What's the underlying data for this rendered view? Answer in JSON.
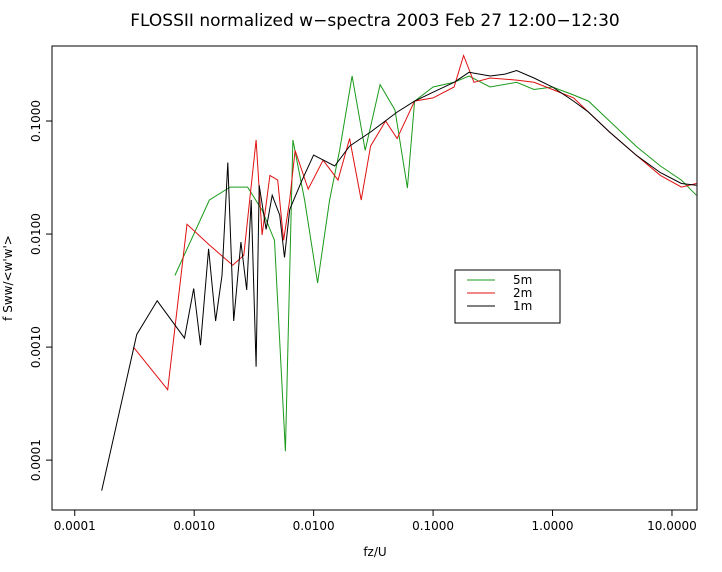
{
  "chart_data": {
    "type": "line",
    "title": "FLOSSII normalized w−spectra 2003 Feb 27 12:00−12:30",
    "x_label": "fz/U",
    "y_label": "f Sww/<w'w'>",
    "xlog": true,
    "ylog": true,
    "legend": "center-right",
    "xlim": [
      6.45e-05,
      16.2
    ],
    "ylim": [
      3.62e-05,
      0.461
    ],
    "xticks": [
      {
        "value": 0.0001,
        "label": "0.0001"
      },
      {
        "value": 0.001,
        "label": "0.0010"
      },
      {
        "value": 0.01,
        "label": "0.0100"
      },
      {
        "value": 0.1,
        "label": "0.1000"
      },
      {
        "value": 1,
        "label": "1.0000"
      },
      {
        "value": 10,
        "label": "10.0000"
      }
    ],
    "yticks": [
      {
        "value": 0.0001,
        "label": "0.0001"
      },
      {
        "value": 0.001,
        "label": "0.0010"
      },
      {
        "value": 0.01,
        "label": "0.0100"
      },
      {
        "value": 0.1,
        "label": "0.1000"
      }
    ],
    "series": [
      {
        "name": "5m",
        "color": "#1a9a1a",
        "x": [
          0.00069,
          0.00134,
          0.002,
          0.0028,
          0.0037,
          0.0047,
          0.0058,
          0.0067,
          0.0084,
          0.0108,
          0.0136,
          0.0165,
          0.021,
          0.027,
          0.036,
          0.048,
          0.061,
          0.07,
          0.1,
          0.15,
          0.2,
          0.3,
          0.5,
          0.7,
          1,
          1.5,
          2,
          3,
          5,
          8,
          12,
          16
        ],
        "values": [
          0.0043,
          0.02,
          0.026,
          0.026,
          0.0163,
          0.0088,
          0.00012,
          0.068,
          0.02,
          0.0037,
          0.02,
          0.055,
          0.25,
          0.055,
          0.21,
          0.125,
          0.0255,
          0.15,
          0.2,
          0.22,
          0.25,
          0.2,
          0.22,
          0.19,
          0.2,
          0.17,
          0.15,
          0.1,
          0.06,
          0.04,
          0.03,
          0.022
        ]
      },
      {
        "name": "2m",
        "color": "#e01010",
        "x": [
          0.00031,
          0.0006,
          0.00087,
          0.00134,
          0.0021,
          0.0026,
          0.0033,
          0.0037,
          0.0043,
          0.005,
          0.0056,
          0.0063,
          0.007,
          0.009,
          0.012,
          0.016,
          0.02,
          0.025,
          0.03,
          0.04,
          0.05,
          0.07,
          0.1,
          0.15,
          0.18,
          0.22,
          0.3,
          0.5,
          0.7,
          1,
          1.5,
          2,
          3,
          5,
          8,
          12,
          16
        ],
        "values": [
          0.001,
          0.00042,
          0.0122,
          0.008,
          0.0053,
          0.0065,
          0.068,
          0.0098,
          0.033,
          0.03,
          0.0088,
          0.02,
          0.055,
          0.025,
          0.045,
          0.03,
          0.07,
          0.02,
          0.06,
          0.1,
          0.07,
          0.15,
          0.16,
          0.2,
          0.38,
          0.22,
          0.24,
          0.23,
          0.22,
          0.19,
          0.16,
          0.12,
          0.08,
          0.05,
          0.033,
          0.026,
          0.028
        ]
      },
      {
        "name": "1m",
        "color": "#000000",
        "x": [
          0.000168,
          0.00033,
          0.00049,
          0.00083,
          0.00099,
          0.00113,
          0.00132,
          0.00151,
          0.00171,
          0.00191,
          0.00214,
          0.00246,
          0.00275,
          0.003,
          0.0033,
          0.0035,
          0.004,
          0.0045,
          0.0052,
          0.0057,
          0.0063,
          0.008,
          0.01,
          0.015,
          0.02,
          0.03,
          0.05,
          0.07,
          0.1,
          0.15,
          0.2,
          0.3,
          0.4,
          0.5,
          0.7,
          1,
          1.5,
          2,
          3,
          5,
          8,
          12,
          16
        ],
        "values": [
          5.37e-05,
          0.00129,
          0.00257,
          0.0012,
          0.0033,
          0.00104,
          0.0074,
          0.0017,
          0.0043,
          0.043,
          0.0017,
          0.0085,
          0.0032,
          0.02,
          0.00067,
          0.027,
          0.011,
          0.022,
          0.0147,
          0.0062,
          0.0165,
          0.03,
          0.05,
          0.04,
          0.06,
          0.08,
          0.12,
          0.15,
          0.18,
          0.22,
          0.27,
          0.25,
          0.26,
          0.28,
          0.24,
          0.2,
          0.15,
          0.12,
          0.08,
          0.05,
          0.035,
          0.028,
          0.027
        ]
      }
    ]
  }
}
